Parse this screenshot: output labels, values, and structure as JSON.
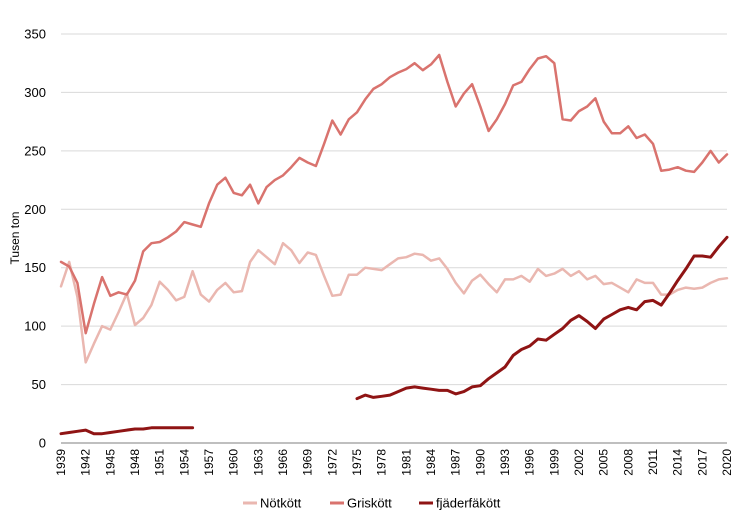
{
  "chart_data": {
    "type": "line",
    "title": "",
    "xlabel": "",
    "ylabel": "Tusen ton",
    "xlim": [
      1939,
      2020
    ],
    "ylim": [
      0,
      350
    ],
    "yticks": [
      0,
      50,
      100,
      150,
      200,
      250,
      300,
      350
    ],
    "xticks": [
      "1939",
      "1942",
      "1945",
      "1948",
      "1951",
      "1954",
      "1957",
      "1960",
      "1963",
      "1966",
      "1969",
      "1972",
      "1975",
      "1978",
      "1981",
      "1984",
      "1987",
      "1990",
      "1993",
      "1996",
      "1999",
      "2002",
      "2005",
      "2008",
      "2011",
      "2014",
      "2017",
      "2020"
    ],
    "grid": "horizontal",
    "legend_position": "bottom",
    "series": [
      {
        "name": "Nötkött",
        "color": "#eab7b0",
        "width": 2.5,
        "points": [
          [
            1939,
            134
          ],
          [
            1940,
            155
          ],
          [
            1941,
            125
          ],
          [
            1942,
            69
          ],
          [
            1943,
            85
          ],
          [
            1944,
            100
          ],
          [
            1945,
            97
          ],
          [
            1946,
            112
          ],
          [
            1947,
            128
          ],
          [
            1948,
            101
          ],
          [
            1949,
            107
          ],
          [
            1950,
            118
          ],
          [
            1951,
            138
          ],
          [
            1952,
            131
          ],
          [
            1953,
            122
          ],
          [
            1954,
            125
          ],
          [
            1955,
            147
          ],
          [
            1956,
            127
          ],
          [
            1957,
            121
          ],
          [
            1958,
            131
          ],
          [
            1959,
            137
          ],
          [
            1960,
            129
          ],
          [
            1961,
            130
          ],
          [
            1962,
            155
          ],
          [
            1963,
            165
          ],
          [
            1964,
            159
          ],
          [
            1965,
            153
          ],
          [
            1966,
            171
          ],
          [
            1967,
            165
          ],
          [
            1968,
            154
          ],
          [
            1969,
            163
          ],
          [
            1970,
            161
          ],
          [
            1971,
            143
          ],
          [
            1972,
            126
          ],
          [
            1973,
            127
          ],
          [
            1974,
            144
          ],
          [
            1975,
            144
          ],
          [
            1976,
            150
          ],
          [
            1977,
            149
          ],
          [
            1978,
            148
          ],
          [
            1979,
            153
          ],
          [
            1980,
            158
          ],
          [
            1981,
            159
          ],
          [
            1982,
            162
          ],
          [
            1983,
            161
          ],
          [
            1984,
            156
          ],
          [
            1985,
            158
          ],
          [
            1986,
            149
          ],
          [
            1987,
            137
          ],
          [
            1988,
            128
          ],
          [
            1989,
            139
          ],
          [
            1990,
            144
          ],
          [
            1991,
            136
          ],
          [
            1992,
            129
          ],
          [
            1993,
            140
          ],
          [
            1994,
            140
          ],
          [
            1995,
            143
          ],
          [
            1996,
            138
          ],
          [
            1997,
            149
          ],
          [
            1998,
            143
          ],
          [
            1999,
            145
          ],
          [
            2000,
            149
          ],
          [
            2001,
            143
          ],
          [
            2002,
            147
          ],
          [
            2003,
            140
          ],
          [
            2004,
            143
          ],
          [
            2005,
            136
          ],
          [
            2006,
            137
          ],
          [
            2007,
            133
          ],
          [
            2008,
            129
          ],
          [
            2009,
            140
          ],
          [
            2010,
            137
          ],
          [
            2011,
            137
          ],
          [
            2012,
            127
          ],
          [
            2013,
            127
          ],
          [
            2014,
            131
          ],
          [
            2015,
            133
          ],
          [
            2016,
            132
          ],
          [
            2017,
            133
          ],
          [
            2018,
            137
          ],
          [
            2019,
            140
          ],
          [
            2020,
            141
          ]
        ]
      },
      {
        "name": "Griskött",
        "color": "#d9736e",
        "width": 2.5,
        "points": [
          [
            1939,
            155
          ],
          [
            1940,
            151
          ],
          [
            1941,
            137
          ],
          [
            1942,
            94
          ],
          [
            1943,
            119
          ],
          [
            1944,
            142
          ],
          [
            1945,
            126
          ],
          [
            1946,
            129
          ],
          [
            1947,
            127
          ],
          [
            1948,
            139
          ],
          [
            1949,
            164
          ],
          [
            1950,
            171
          ],
          [
            1951,
            172
          ],
          [
            1952,
            176
          ],
          [
            1953,
            181
          ],
          [
            1954,
            189
          ],
          [
            1955,
            187
          ],
          [
            1956,
            185
          ],
          [
            1957,
            205
          ],
          [
            1958,
            221
          ],
          [
            1959,
            227
          ],
          [
            1960,
            214
          ],
          [
            1961,
            212
          ],
          [
            1962,
            221
          ],
          [
            1963,
            205
          ],
          [
            1964,
            219
          ],
          [
            1965,
            225
          ],
          [
            1966,
            229
          ],
          [
            1967,
            236
          ],
          [
            1968,
            244
          ],
          [
            1969,
            240
          ],
          [
            1970,
            237
          ],
          [
            1971,
            256
          ],
          [
            1972,
            276
          ],
          [
            1973,
            264
          ],
          [
            1974,
            277
          ],
          [
            1975,
            283
          ],
          [
            1976,
            294
          ],
          [
            1977,
            303
          ],
          [
            1978,
            307
          ],
          [
            1979,
            313
          ],
          [
            1980,
            317
          ],
          [
            1981,
            320
          ],
          [
            1982,
            325
          ],
          [
            1983,
            319
          ],
          [
            1984,
            324
          ],
          [
            1985,
            332
          ],
          [
            1986,
            309
          ],
          [
            1987,
            288
          ],
          [
            1988,
            299
          ],
          [
            1989,
            307
          ],
          [
            1990,
            288
          ],
          [
            1991,
            267
          ],
          [
            1992,
            277
          ],
          [
            1993,
            290
          ],
          [
            1994,
            306
          ],
          [
            1995,
            309
          ],
          [
            1996,
            320
          ],
          [
            1997,
            329
          ],
          [
            1998,
            331
          ],
          [
            1999,
            325
          ],
          [
            2000,
            277
          ],
          [
            2001,
            276
          ],
          [
            2002,
            284
          ],
          [
            2003,
            288
          ],
          [
            2004,
            295
          ],
          [
            2005,
            275
          ],
          [
            2006,
            265
          ],
          [
            2007,
            265
          ],
          [
            2008,
            271
          ],
          [
            2009,
            261
          ],
          [
            2010,
            264
          ],
          [
            2011,
            256
          ],
          [
            2012,
            233
          ],
          [
            2013,
            234
          ],
          [
            2014,
            236
          ],
          [
            2015,
            233
          ],
          [
            2016,
            232
          ],
          [
            2017,
            240
          ],
          [
            2018,
            250
          ],
          [
            2019,
            240
          ],
          [
            2020,
            247
          ]
        ]
      },
      {
        "name": "fjäderfäkött",
        "color": "#8f1414",
        "width": 3,
        "segments": [
          [
            [
              1939,
              8
            ],
            [
              1940,
              9
            ],
            [
              1941,
              10
            ],
            [
              1942,
              11
            ],
            [
              1943,
              8
            ],
            [
              1944,
              8
            ],
            [
              1945,
              9
            ],
            [
              1946,
              10
            ],
            [
              1947,
              11
            ],
            [
              1948,
              12
            ],
            [
              1949,
              12
            ],
            [
              1950,
              13
            ],
            [
              1951,
              13
            ],
            [
              1952,
              13
            ],
            [
              1953,
              13
            ],
            [
              1954,
              13
            ],
            [
              1955,
              13
            ]
          ],
          [
            [
              1975,
              38
            ],
            [
              1976,
              41
            ],
            [
              1977,
              39
            ],
            [
              1978,
              40
            ],
            [
              1979,
              41
            ],
            [
              1980,
              44
            ],
            [
              1981,
              47
            ],
            [
              1982,
              48
            ],
            [
              1983,
              47
            ],
            [
              1984,
              46
            ],
            [
              1985,
              45
            ],
            [
              1986,
              45
            ],
            [
              1987,
              42
            ],
            [
              1988,
              44
            ],
            [
              1989,
              48
            ],
            [
              1990,
              49
            ],
            [
              1991,
              55
            ],
            [
              1992,
              60
            ],
            [
              1993,
              65
            ],
            [
              1994,
              75
            ],
            [
              1995,
              80
            ],
            [
              1996,
              83
            ],
            [
              1997,
              89
            ],
            [
              1998,
              88
            ],
            [
              1999,
              93
            ],
            [
              2000,
              98
            ],
            [
              2001,
              105
            ],
            [
              2002,
              109
            ],
            [
              2003,
              104
            ],
            [
              2004,
              98
            ],
            [
              2005,
              106
            ],
            [
              2006,
              110
            ],
            [
              2007,
              114
            ],
            [
              2008,
              116
            ],
            [
              2009,
              114
            ],
            [
              2010,
              121
            ],
            [
              2011,
              122
            ],
            [
              2012,
              118
            ],
            [
              2013,
              128
            ],
            [
              2014,
              139
            ],
            [
              2015,
              149
            ],
            [
              2016,
              160
            ],
            [
              2017,
              160
            ],
            [
              2018,
              159
            ],
            [
              2019,
              168
            ],
            [
              2020,
              176
            ]
          ]
        ]
      }
    ]
  }
}
